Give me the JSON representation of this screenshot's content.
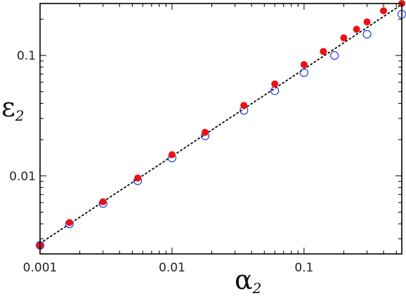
{
  "chart_data": {
    "type": "scatter",
    "title": "",
    "xlabel": {
      "symbol": "α",
      "subscript": "2"
    },
    "ylabel": {
      "symbol": "ε",
      "subscript": "2"
    },
    "x_scale": "log",
    "y_scale": "log",
    "xlim": [
      0.001,
      0.55
    ],
    "ylim": [
      0.00225,
      0.27
    ],
    "grid": false,
    "x_ticks": [
      {
        "value": 0.001,
        "label": "0.001"
      },
      {
        "value": 0.01,
        "label": "0.01"
      },
      {
        "value": 0.1,
        "label": "0.1"
      }
    ],
    "y_ticks": [
      {
        "value": 0.01,
        "label": "0.01"
      },
      {
        "value": 0.1,
        "label": "0.1"
      }
    ],
    "series": [
      {
        "style": "open-circle",
        "color": "#3344dd",
        "points": [
          [
            0.001,
            0.00265
          ],
          [
            0.00167,
            0.004
          ],
          [
            0.003,
            0.0059
          ],
          [
            0.0055,
            0.0091
          ],
          [
            0.01,
            0.0141
          ],
          [
            0.0178,
            0.0215
          ],
          [
            0.035,
            0.035
          ],
          [
            0.06,
            0.051
          ],
          [
            0.1,
            0.072
          ],
          [
            0.17,
            0.1
          ],
          [
            0.3,
            0.15
          ],
          [
            0.55,
            0.22
          ]
        ]
      },
      {
        "style": "filled-circle",
        "color": "#ee1111",
        "points": [
          [
            0.001,
            0.00265
          ],
          [
            0.00167,
            0.0041
          ],
          [
            0.003,
            0.0061
          ],
          [
            0.0055,
            0.0096
          ],
          [
            0.01,
            0.015
          ],
          [
            0.0178,
            0.023
          ],
          [
            0.035,
            0.0385
          ],
          [
            0.06,
            0.058
          ],
          [
            0.1,
            0.084
          ],
          [
            0.14,
            0.108
          ],
          [
            0.2,
            0.14
          ],
          [
            0.25,
            0.165
          ],
          [
            0.3,
            0.19
          ],
          [
            0.4,
            0.235
          ],
          [
            0.55,
            0.27
          ]
        ]
      }
    ],
    "reference_line": {
      "style": "dotted",
      "color": "#000000",
      "from": [
        0.001,
        0.00275
      ],
      "to": [
        0.55,
        0.265
      ]
    }
  }
}
